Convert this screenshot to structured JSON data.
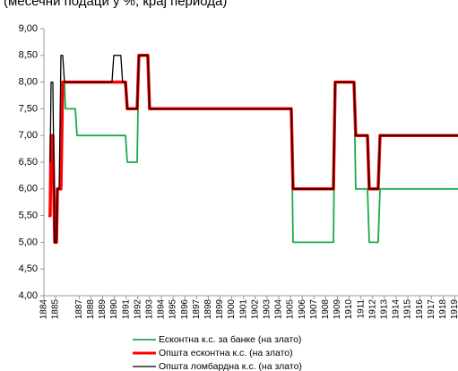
{
  "chart_data": {
    "type": "line",
    "subtitle": "(месечни подаци у %, крај периода)",
    "xlim": [
      1884,
      1919.27
    ],
    "xticks": [
      1884,
      1885,
      1887,
      1888,
      1889,
      1890,
      1891,
      1892,
      1893,
      1894,
      1895,
      1896,
      1897,
      1898,
      1899,
      1900,
      1901,
      1902,
      1903,
      1904,
      1905,
      1906,
      1907,
      1908,
      1909,
      1910,
      1911,
      1912,
      1913,
      1914,
      1915,
      1916,
      1917,
      1918,
      1919
    ],
    "ylim": [
      4,
      9
    ],
    "yticks": [
      {
        "value": 4,
        "label": "4,00"
      },
      {
        "value": 4.5,
        "label": "4,50"
      },
      {
        "value": 5,
        "label": "5,00"
      },
      {
        "value": 5.5,
        "label": "5,50"
      },
      {
        "value": 6,
        "label": "6,00"
      },
      {
        "value": 6.5,
        "label": "6,50"
      },
      {
        "value": 7,
        "label": "7,00"
      },
      {
        "value": 7.5,
        "label": "7,50"
      },
      {
        "value": 8,
        "label": "8,00"
      },
      {
        "value": 8.5,
        "label": "8,50"
      },
      {
        "value": 9,
        "label": "9,00"
      }
    ],
    "grid": false,
    "series": [
      {
        "name": "Есконтна к.с. за банке  (на злато)",
        "color": "#1aab4b",
        "width": 1.8,
        "x": [
          1885.6,
          1885.75,
          1885.83,
          1886.67,
          1886.82,
          1890.95,
          1891.1,
          1891.94,
          1892.09,
          1892.85,
          1893.0,
          1905.07,
          1905.22,
          1908.66,
          1908.81,
          1910.41,
          1910.56,
          1911.56,
          1911.71,
          1912.47,
          1912.63,
          1919.27
        ],
        "values": [
          8,
          8,
          7.5,
          7.5,
          7,
          7,
          6.5,
          6.5,
          8.5,
          8.5,
          7.5,
          7.5,
          5,
          5,
          8,
          8,
          6,
          6,
          5,
          5,
          6,
          6
        ]
      },
      {
        "name": "Општа есконтна к.с. (на злато)",
        "color": "#ff0000",
        "width": 3.5,
        "x": [
          1884.38,
          1884.53,
          1884.61,
          1884.76,
          1884.92,
          1885.07,
          1885.15,
          1885.45,
          1885.6,
          1890.95,
          1891.1,
          1891.94,
          1892.09,
          1892.85,
          1893.0,
          1905.07,
          1905.22,
          1908.66,
          1908.81,
          1910.41,
          1910.56,
          1911.56,
          1911.71,
          1912.47,
          1912.63,
          1919.27
        ],
        "values": [
          5.5,
          5.5,
          7,
          7,
          5,
          5,
          6,
          6,
          8,
          8,
          7.5,
          7.5,
          8.5,
          8.5,
          7.5,
          7.5,
          6,
          6,
          8,
          8,
          7,
          7,
          6,
          6,
          7,
          7
        ]
      },
      {
        "name": "Општа ломбардна к.с. (на злато)",
        "color": "#000000",
        "width": 1.3,
        "x": [
          1884.53,
          1884.61,
          1884.76,
          1884.92,
          1885.07,
          1885.15,
          1885.3,
          1885.45,
          1885.6,
          1885.75,
          1889.8,
          1889.95,
          1890.55,
          1890.7,
          1890.95,
          1891.1,
          1891.94,
          1892.09,
          1892.85,
          1893.0,
          1905.07,
          1905.22,
          1908.66,
          1908.81,
          1910.41,
          1910.56,
          1911.56,
          1911.71,
          1912.47,
          1912.63,
          1919.27
        ],
        "values": [
          6.5,
          8,
          8,
          5,
          5,
          6,
          6,
          8.5,
          8.5,
          8,
          8,
          8.5,
          8.5,
          8,
          8,
          7.5,
          7.5,
          8.5,
          8.5,
          7.5,
          7.5,
          6,
          6,
          8,
          8,
          7,
          7,
          6,
          6,
          7,
          7
        ]
      }
    ]
  }
}
